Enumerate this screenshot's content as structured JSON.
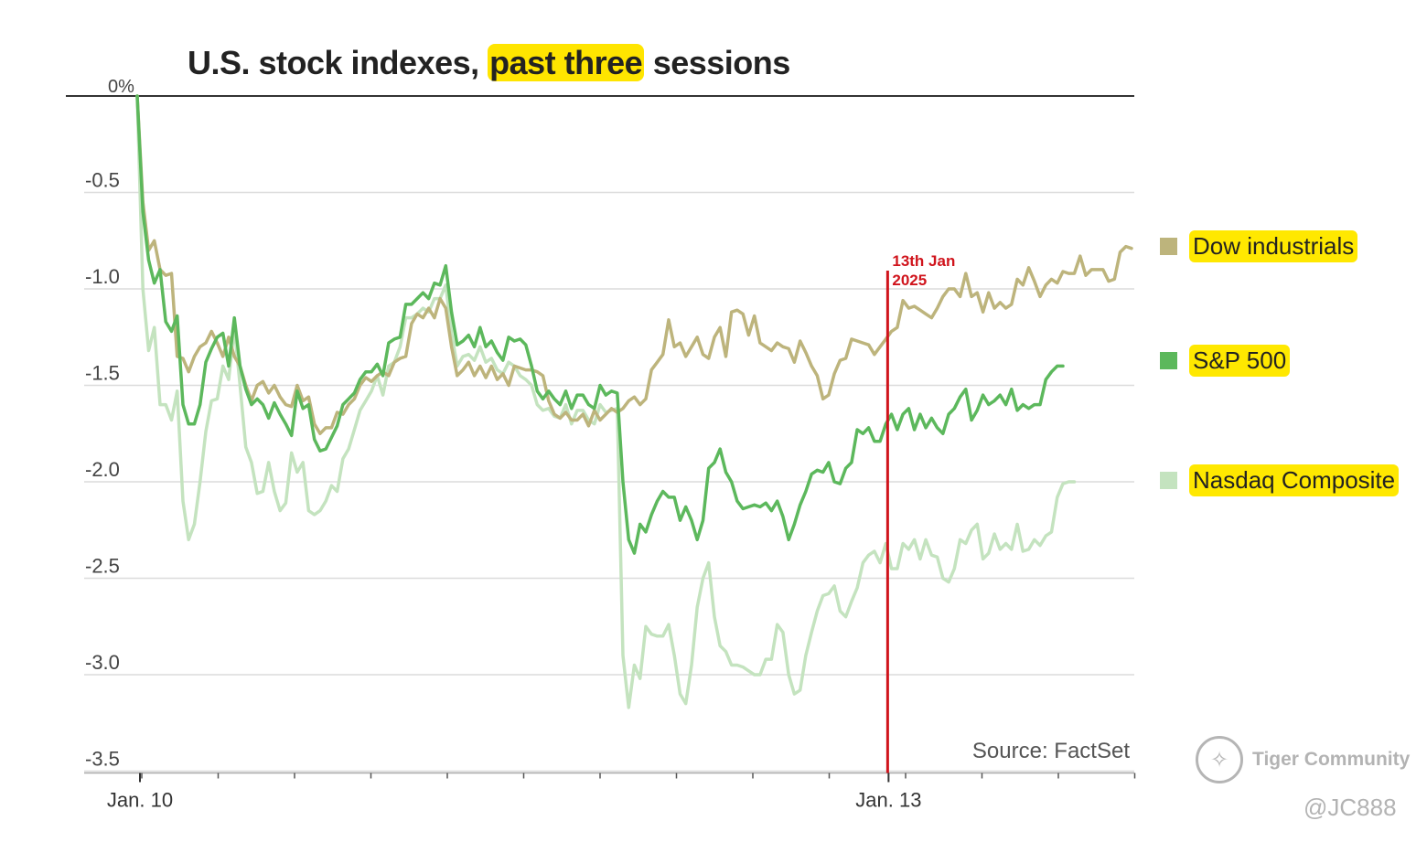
{
  "title": {
    "pre": "U.S. stock indexes, ",
    "highlight": "past three",
    "post": " sessions"
  },
  "source": "Source: FactSet",
  "watermark": {
    "text": "Tiger Community",
    "handle": "@JC888"
  },
  "colors": {
    "dow": "#bdb47c",
    "sp500": "#5cb85c",
    "nasdaq": "#c4e3bf",
    "annotation": "#d0141c",
    "highlight": "#ffe500"
  },
  "chart_data": {
    "type": "line",
    "title": "U.S. stock indexes, past three sessions",
    "xlabel": "",
    "ylabel": "",
    "ylim": [
      -3.5,
      0
    ],
    "y_ticks": [
      "0%",
      "-0.5",
      "-1.0",
      "-1.5",
      "-2.0",
      "-2.5",
      "-3.0",
      "-3.5"
    ],
    "y_tick_values": [
      0,
      -0.5,
      -1.0,
      -1.5,
      -2.0,
      -2.5,
      -3.0,
      -3.5
    ],
    "x_ticks": [
      {
        "label": "Jan. 10",
        "t": 0
      },
      {
        "label": "Jan. 13",
        "t": 131
      }
    ],
    "annotation": {
      "text_line1": "13th Jan",
      "text_line2": "2025",
      "t": 131
    },
    "legend_position": "right",
    "grid": true,
    "series": [
      {
        "name": "Dow industrials",
        "values": [
          0,
          -0.55,
          -0.8,
          -0.75,
          -0.9,
          -0.93,
          -0.92,
          -1.35,
          -1.36,
          -1.43,
          -1.35,
          -1.3,
          -1.28,
          -1.22,
          -1.28,
          -1.35,
          -1.25,
          -1.35,
          -1.4,
          -1.5,
          -1.58,
          -1.5,
          -1.48,
          -1.54,
          -1.5,
          -1.56,
          -1.6,
          -1.61,
          -1.5,
          -1.58,
          -1.56,
          -1.7,
          -1.75,
          -1.72,
          -1.72,
          -1.64,
          -1.65,
          -1.6,
          -1.57,
          -1.5,
          -1.46,
          -1.48,
          -1.45,
          -1.43,
          -1.45,
          -1.38,
          -1.36,
          -1.35,
          -1.18,
          -1.13,
          -1.15,
          -1.1,
          -1.15,
          -1.05,
          -1.1,
          -1.3,
          -1.45,
          -1.42,
          -1.38,
          -1.45,
          -1.4,
          -1.46,
          -1.4,
          -1.47,
          -1.44,
          -1.5,
          -1.4,
          -1.41,
          -1.42,
          -1.42,
          -1.43,
          -1.45,
          -1.58,
          -1.65,
          -1.67,
          -1.64,
          -1.68,
          -1.68,
          -1.65,
          -1.71,
          -1.63,
          -1.68,
          -1.65,
          -1.62,
          -1.64,
          -1.62,
          -1.58,
          -1.56,
          -1.6,
          -1.57,
          -1.42,
          -1.38,
          -1.34,
          -1.16,
          -1.3,
          -1.28,
          -1.35,
          -1.3,
          -1.25,
          -1.34,
          -1.36,
          -1.25,
          -1.2,
          -1.35,
          -1.12,
          -1.11,
          -1.13,
          -1.24,
          -1.14,
          -1.28,
          -1.3,
          -1.32,
          -1.28,
          -1.3,
          -1.31,
          -1.38,
          -1.27,
          -1.33,
          -1.4,
          -1.45,
          -1.57,
          -1.55,
          -1.44,
          -1.37,
          -1.36,
          -1.26,
          -1.27,
          -1.28,
          -1.29,
          -1.34,
          -1.3,
          -1.26,
          -1.22,
          -1.2,
          -1.06,
          -1.1,
          -1.09,
          -1.11,
          -1.13,
          -1.15,
          -1.1,
          -1.04,
          -1.0,
          -1.0,
          -1.04,
          -0.92,
          -1.04,
          -1.02,
          -1.12,
          -1.02,
          -1.1,
          -1.07,
          -1.1,
          -1.08,
          -0.95,
          -0.98,
          -0.89,
          -0.96,
          -1.04,
          -0.98,
          -0.95,
          -0.97,
          -0.91,
          -0.92,
          -0.92,
          -0.83,
          -0.93,
          -0.9,
          -0.9,
          -0.9,
          -0.96,
          -0.95,
          -0.81,
          -0.78,
          -0.79
        ]
      },
      {
        "name": "S&P 500",
        "values": [
          0,
          -0.6,
          -0.85,
          -0.97,
          -0.9,
          -1.17,
          -1.22,
          -1.14,
          -1.6,
          -1.7,
          -1.7,
          -1.6,
          -1.38,
          -1.31,
          -1.25,
          -1.23,
          -1.4,
          -1.15,
          -1.4,
          -1.52,
          -1.6,
          -1.57,
          -1.6,
          -1.67,
          -1.59,
          -1.65,
          -1.7,
          -1.76,
          -1.53,
          -1.62,
          -1.6,
          -1.78,
          -1.84,
          -1.83,
          -1.77,
          -1.71,
          -1.6,
          -1.57,
          -1.54,
          -1.47,
          -1.43,
          -1.43,
          -1.39,
          -1.45,
          -1.28,
          -1.26,
          -1.25,
          -1.08,
          -1.08,
          -1.05,
          -1.02,
          -1.05,
          -0.97,
          -0.98,
          -0.88,
          -1.12,
          -1.29,
          -1.27,
          -1.24,
          -1.3,
          -1.2,
          -1.3,
          -1.27,
          -1.33,
          -1.37,
          -1.25,
          -1.27,
          -1.26,
          -1.29,
          -1.4,
          -1.53,
          -1.57,
          -1.53,
          -1.57,
          -1.6,
          -1.53,
          -1.62,
          -1.55,
          -1.55,
          -1.6,
          -1.62,
          -1.5,
          -1.55,
          -1.53,
          -1.54,
          -2.0,
          -2.3,
          -2.37,
          -2.22,
          -2.26,
          -2.17,
          -2.1,
          -2.05,
          -2.08,
          -2.08,
          -2.2,
          -2.13,
          -2.2,
          -2.3,
          -2.2,
          -1.93,
          -1.9,
          -1.83,
          -1.95,
          -2.0,
          -2.1,
          -2.14,
          -2.13,
          -2.12,
          -2.13,
          -2.11,
          -2.15,
          -2.1,
          -2.18,
          -2.3,
          -2.22,
          -2.12,
          -2.05,
          -1.96,
          -1.94,
          -1.95,
          -1.9,
          -2.0,
          -2.01,
          -1.93,
          -1.9,
          -1.73,
          -1.75,
          -1.72,
          -1.79,
          -1.79,
          -1.7,
          -1.65,
          -1.73,
          -1.65,
          -1.62,
          -1.73,
          -1.65,
          -1.72,
          -1.67,
          -1.72,
          -1.75,
          -1.65,
          -1.62,
          -1.56,
          -1.52,
          -1.68,
          -1.63,
          -1.55,
          -1.6,
          -1.58,
          -1.55,
          -1.6,
          -1.52,
          -1.63,
          -1.6,
          -1.62,
          -1.6,
          -1.6,
          -1.47,
          -1.43,
          -1.4,
          -1.4
        ]
      },
      {
        "name": "Nasdaq Composite",
        "values": [
          0,
          -1.0,
          -1.32,
          -1.2,
          -1.6,
          -1.6,
          -1.68,
          -1.53,
          -2.1,
          -2.3,
          -2.22,
          -2.0,
          -1.74,
          -1.58,
          -1.57,
          -1.4,
          -1.47,
          -1.2,
          -1.5,
          -1.82,
          -1.9,
          -2.06,
          -2.05,
          -1.9,
          -2.05,
          -2.15,
          -2.11,
          -1.85,
          -1.95,
          -1.9,
          -2.15,
          -2.17,
          -2.15,
          -2.1,
          -2.02,
          -2.05,
          -1.88,
          -1.83,
          -1.73,
          -1.63,
          -1.58,
          -1.53,
          -1.45,
          -1.55,
          -1.4,
          -1.38,
          -1.3,
          -1.15,
          -1.15,
          -1.13,
          -1.1,
          -1.12,
          -1.05,
          -1.05,
          -0.98,
          -1.23,
          -1.4,
          -1.35,
          -1.34,
          -1.37,
          -1.3,
          -1.38,
          -1.36,
          -1.42,
          -1.44,
          -1.38,
          -1.4,
          -1.45,
          -1.47,
          -1.5,
          -1.6,
          -1.63,
          -1.62,
          -1.66,
          -1.67,
          -1.6,
          -1.7,
          -1.63,
          -1.63,
          -1.68,
          -1.7,
          -1.6,
          -1.64,
          -1.63,
          -1.62,
          -2.9,
          -3.17,
          -2.95,
          -3.02,
          -2.75,
          -2.79,
          -2.8,
          -2.8,
          -2.74,
          -2.9,
          -3.1,
          -3.15,
          -2.95,
          -2.65,
          -2.5,
          -2.42,
          -2.7,
          -2.85,
          -2.88,
          -2.95,
          -2.95,
          -2.96,
          -2.98,
          -3.0,
          -3.0,
          -2.92,
          -2.92,
          -2.74,
          -2.78,
          -3.0,
          -3.1,
          -3.08,
          -2.9,
          -2.78,
          -2.67,
          -2.59,
          -2.58,
          -2.54,
          -2.67,
          -2.7,
          -2.62,
          -2.55,
          -2.42,
          -2.38,
          -2.36,
          -2.42,
          -2.32,
          -2.45,
          -2.45,
          -2.32,
          -2.35,
          -2.3,
          -2.4,
          -2.3,
          -2.38,
          -2.39,
          -2.5,
          -2.52,
          -2.45,
          -2.3,
          -2.32,
          -2.25,
          -2.22,
          -2.4,
          -2.37,
          -2.27,
          -2.35,
          -2.32,
          -2.35,
          -2.22,
          -2.36,
          -2.35,
          -2.3,
          -2.33,
          -2.28,
          -2.26,
          -2.08,
          -2.01,
          -2.0,
          -2.0
        ]
      }
    ]
  }
}
